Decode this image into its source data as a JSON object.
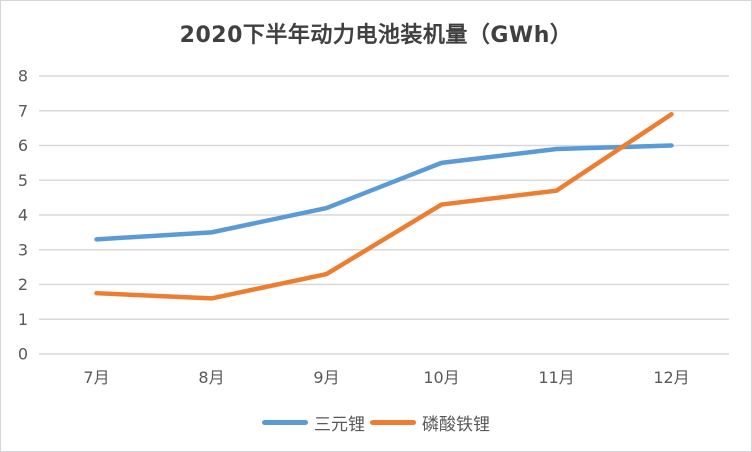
{
  "title": "2020下半年动力电池装机量（GWh）",
  "chart_data": {
    "type": "line",
    "title": "2020下半年动力电池装机量（GWh）",
    "categories": [
      "7月",
      "8月",
      "9月",
      "10月",
      "11月",
      "12月"
    ],
    "series": [
      {
        "name": "三元锂",
        "color": "#5B9BD5",
        "values": [
          3.3,
          3.5,
          4.2,
          5.5,
          5.9,
          6.0
        ]
      },
      {
        "name": "磷酸铁锂",
        "color": "#ED7D31",
        "values": [
          1.75,
          1.6,
          2.3,
          4.3,
          4.7,
          6.9
        ]
      }
    ],
    "xlabel": "",
    "ylabel": "",
    "ylim": [
      0,
      8
    ],
    "ytick_interval": 1,
    "yticks": [
      0,
      1,
      2,
      3,
      4,
      5,
      6,
      7,
      8
    ],
    "grid": true,
    "legend_position": "bottom"
  },
  "colors": {
    "background": "#FFFFFF",
    "border": "#D6D6D8",
    "gridline": "#D9D9D9",
    "axis_text": "#595959",
    "title_text": "#404040"
  }
}
